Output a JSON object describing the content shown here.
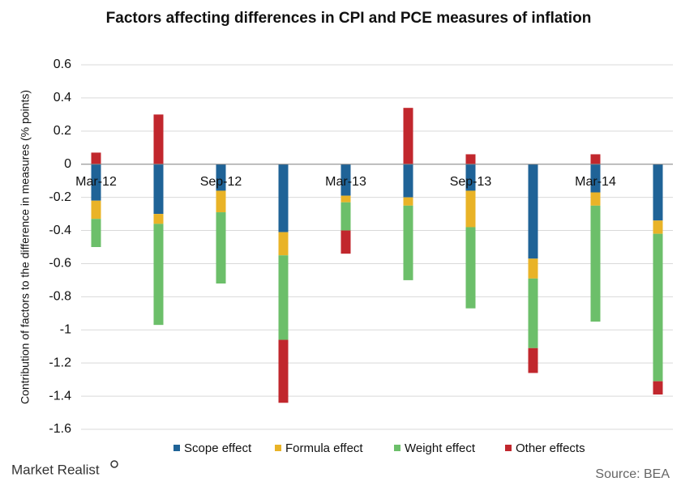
{
  "chart_data": {
    "type": "bar",
    "stacked": true,
    "title": "Factors affecting differences in CPI and PCE measures of inflation",
    "y_label": "Contribution of factors to the difference in measures (% points)",
    "categories": [
      "Mar-12",
      null,
      "Sep-12",
      null,
      "Mar-13",
      null,
      "Sep-13",
      null,
      "Mar-14",
      null
    ],
    "series": [
      {
        "name": "Scope effect",
        "color": "#1f6397",
        "values": [
          -0.22,
          -0.3,
          -0.16,
          -0.41,
          -0.19,
          -0.2,
          -0.16,
          -0.57,
          -0.17,
          -0.34
        ]
      },
      {
        "name": "Formula effect",
        "color": "#e9b327",
        "values": [
          -0.11,
          -0.06,
          -0.13,
          -0.14,
          -0.04,
          -0.05,
          -0.22,
          -0.12,
          -0.08,
          -0.08
        ]
      },
      {
        "name": "Weight effect",
        "color": "#6cbf6a",
        "values": [
          -0.17,
          -0.61,
          -0.43,
          -0.51,
          -0.17,
          -0.45,
          -0.49,
          -0.42,
          -0.7,
          -0.89
        ]
      },
      {
        "name": "Other effects",
        "color": "#c1272d",
        "values": [
          0.07,
          0.3,
          0,
          -0.38,
          -0.14,
          0.34,
          0.06,
          -0.15,
          0.06,
          -0.08
        ]
      }
    ],
    "ylim": [
      -1.6,
      0.6
    ],
    "yticks": [
      0.6,
      0.4,
      0.2,
      0,
      -0.2,
      -0.4,
      -0.6,
      -0.8,
      -1,
      -1.2,
      -1.4,
      -1.6
    ],
    "grid": true,
    "legend": "bottom",
    "brand": "Market Realist",
    "source": "Source: BEA"
  }
}
